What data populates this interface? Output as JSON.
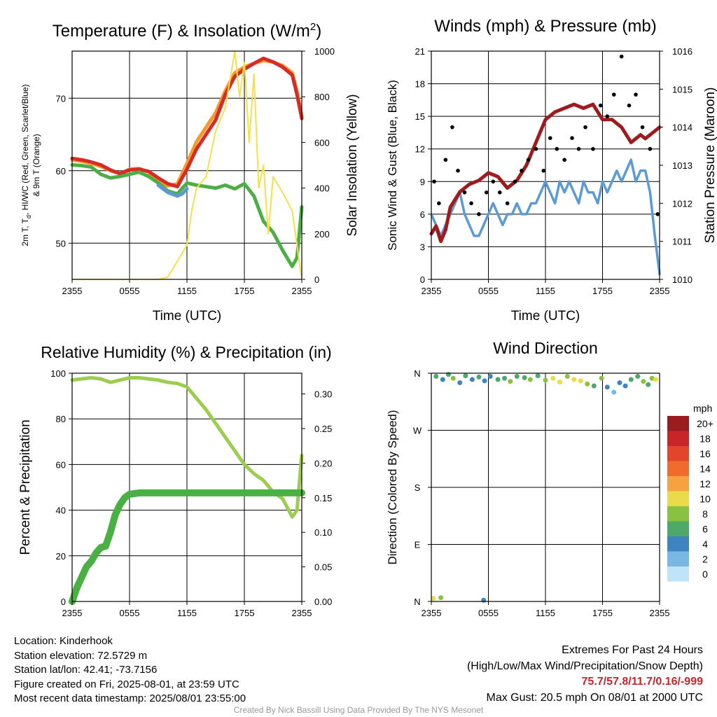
{
  "chart_data": [
    {
      "type": "line",
      "title": "Temperature (F) & Insolation (W/m",
      "title_sup": "2",
      "title_end": ")",
      "xlabel": "Time (UTC)",
      "ylabel_left_line1": "2m T, T",
      "ylabel_left_sub": "d",
      "ylabel_left_line1_end": ", HI/WC (Red, Green, Scarlet/Blue)",
      "ylabel_left_line2": "& 9m T (Orange)",
      "ylabel_right": "Solar Insolation (Yellow)",
      "x_ticks": [
        "2355",
        "0555",
        "1155",
        "1755",
        "2355"
      ],
      "y_left_ticks": [
        50,
        60,
        70
      ],
      "y_left_range": [
        45,
        76.5
      ],
      "y_right_ticks": [
        0,
        200,
        400,
        600,
        800,
        1000
      ],
      "y_right_range": [
        0,
        1000
      ],
      "x_range": [
        0,
        24
      ],
      "series": [
        {
          "color": "#f59a2c",
          "axis": "left",
          "x": [
            0,
            1,
            2,
            3,
            4,
            5,
            6,
            7,
            8,
            9,
            10,
            11,
            12,
            13,
            14,
            15,
            16,
            17,
            18,
            19,
            20,
            21,
            22,
            23,
            23.5,
            24
          ],
          "y": [
            61.5,
            61.3,
            61.0,
            60.6,
            60.0,
            59.6,
            60.2,
            60.3,
            59.8,
            58.5,
            57.9,
            58.2,
            61.0,
            64.0,
            66.0,
            68.0,
            71.0,
            73.5,
            74.3,
            74.8,
            75.2,
            75.0,
            74.5,
            73.5,
            71.0,
            67.5
          ]
        },
        {
          "color": "#d62b26",
          "axis": "left",
          "x": [
            0,
            1,
            2,
            3,
            4,
            5,
            6,
            7,
            8,
            9,
            10,
            11,
            12,
            13,
            14,
            15,
            16,
            17,
            18,
            19,
            20,
            21,
            22,
            23,
            23.5,
            24
          ],
          "y": [
            61.7,
            61.5,
            61.2,
            60.8,
            60.1,
            59.6,
            60.1,
            60.2,
            59.9,
            59.0,
            58.2,
            57.8,
            60.2,
            63.0,
            65.0,
            67.0,
            70.5,
            73.0,
            74.0,
            74.8,
            75.5,
            75.0,
            74.3,
            73.2,
            70.5,
            67.2
          ]
        },
        {
          "color": "#4caf45",
          "axis": "left",
          "x": [
            0,
            1,
            2,
            3,
            4,
            5,
            6,
            7,
            8,
            9,
            10,
            11,
            12,
            13,
            14,
            15,
            16,
            17,
            18,
            19,
            20,
            21,
            22,
            23,
            23.5,
            24
          ],
          "y": [
            60.8,
            60.7,
            60.5,
            59.5,
            59.0,
            59.2,
            59.5,
            59.8,
            59.2,
            58.3,
            57.2,
            56.8,
            58.3,
            58.0,
            57.8,
            57.6,
            58.0,
            57.5,
            58.2,
            56.5,
            53.0,
            51.5,
            49.0,
            46.8,
            48.0,
            55.0
          ]
        },
        {
          "color": "#5b9bd5",
          "axis": "left",
          "x": [
            9,
            10,
            11,
            11.5,
            12
          ],
          "y": [
            58.0,
            57.0,
            56.5,
            56.8,
            57.5
          ]
        },
        {
          "color": "#f5e04a",
          "axis": "right",
          "x": [
            0,
            6,
            8,
            9,
            10,
            11,
            12,
            12.5,
            13,
            14,
            15,
            16,
            17,
            17.5,
            18,
            18.5,
            19,
            19.5,
            20,
            20.5,
            21,
            22,
            23,
            24
          ],
          "y": [
            0,
            0,
            0,
            0,
            10,
            80,
            150,
            300,
            400,
            450,
            650,
            750,
            1000,
            800,
            950,
            600,
            900,
            400,
            500,
            200,
            450,
            380,
            300,
            0
          ]
        }
      ]
    },
    {
      "type": "line",
      "title": "Winds (mph) & Pressure (mb)",
      "xlabel": "Time (UTC)",
      "ylabel_left": "Sonic Wind & Gust (Blue, Black)",
      "ylabel_right": "Station Pressure (Maroon)",
      "x_ticks": [
        "2355",
        "0555",
        "1155",
        "1755",
        "2355"
      ],
      "y_left_ticks": [
        0,
        3,
        6,
        9,
        12,
        15,
        18,
        21
      ],
      "y_left_range": [
        0,
        21
      ],
      "y_right_ticks": [
        1010,
        1011,
        1012,
        1013,
        1014,
        1015,
        1016
      ],
      "y_right_range": [
        1010,
        1016
      ],
      "x_range": [
        0,
        24
      ],
      "series": [
        {
          "color": "#5b9bd5",
          "axis": "left",
          "x": [
            0,
            0.5,
            1,
            1.5,
            2,
            2.5,
            3,
            3.5,
            4,
            4.5,
            5,
            5.5,
            6,
            6.5,
            7,
            7.5,
            8,
            8.5,
            9,
            9.5,
            10,
            10.5,
            11,
            11.5,
            12,
            12.5,
            13,
            13.5,
            14,
            14.5,
            15,
            15.5,
            16,
            16.5,
            17,
            17.5,
            18,
            18.5,
            19,
            19.5,
            20,
            20.5,
            21,
            21.5,
            22,
            22.5,
            23,
            23.5,
            24
          ],
          "y": [
            6,
            5,
            4,
            5,
            6,
            7,
            8,
            6,
            5,
            4,
            4,
            5,
            6,
            7,
            6,
            5,
            6,
            6,
            7,
            6,
            6,
            7,
            7,
            8,
            9,
            8,
            7,
            9,
            8,
            9,
            8,
            7,
            9,
            8,
            8,
            7,
            9,
            8,
            9,
            10,
            9,
            10,
            11,
            9,
            10,
            10,
            8,
            4,
            0.5
          ]
        },
        {
          "color": "#9e1b1e",
          "axis": "right",
          "x": [
            0,
            0.5,
            1,
            1.5,
            2,
            3,
            4,
            5,
            6,
            7,
            8,
            9,
            10,
            11,
            12,
            13,
            14,
            15,
            16,
            17,
            17.5,
            18,
            19,
            20,
            21,
            22,
            22.5,
            23,
            24
          ],
          "y": [
            1011.2,
            1011.4,
            1011.0,
            1011.3,
            1011.9,
            1012.3,
            1012.5,
            1012.6,
            1012.8,
            1012.7,
            1012.4,
            1012.6,
            1013.0,
            1013.6,
            1014.2,
            1014.4,
            1014.5,
            1014.6,
            1014.5,
            1014.6,
            1014.4,
            1014.2,
            1014.2,
            1014.0,
            1013.6,
            1013.8,
            1013.7,
            1013.8,
            1014.0
          ]
        },
        {
          "color": "#000000",
          "axis": "left",
          "kind": "scatter",
          "x": [
            0.3,
            0.8,
            1.5,
            2.2,
            2.8,
            3.5,
            4.2,
            5,
            5.8,
            6.5,
            7.2,
            8,
            8.8,
            9.5,
            10.2,
            11,
            11.8,
            12.5,
            13.2,
            14,
            14.8,
            15.5,
            16.2,
            17,
            17.8,
            18.5,
            19.2,
            20,
            20.8,
            21.5,
            22.2,
            23,
            23.8
          ],
          "y": [
            9,
            7,
            11,
            14,
            10,
            8,
            7,
            6,
            8,
            9,
            8,
            7,
            9,
            10,
            11,
            12,
            10,
            13,
            12,
            11,
            13,
            12,
            14,
            12,
            16,
            15,
            17,
            20.5,
            16,
            17,
            14,
            12,
            6
          ]
        }
      ]
    },
    {
      "type": "line",
      "title": "Relative Humidity (%) & Precipitation (in)",
      "ylabel_left": "Percent & Precipitation",
      "x_ticks": [
        "2355",
        "0555",
        "1155",
        "1755",
        "2355"
      ],
      "y_left_ticks": [
        0,
        20,
        40,
        60,
        80,
        100
      ],
      "y_left_range": [
        0,
        100
      ],
      "y_right_ticks": [
        "0.00",
        "0.05",
        "0.10",
        "0.15",
        "0.20",
        "0.25",
        "0.30"
      ],
      "y_right_range": [
        0,
        0.33
      ],
      "x_range": [
        0,
        24
      ],
      "series": [
        {
          "color": "#9ccc50",
          "axis": "left",
          "x": [
            0,
            1,
            2,
            3,
            4,
            5,
            6,
            7,
            8,
            9,
            10,
            11,
            12,
            13,
            14,
            15,
            16,
            17,
            18,
            19,
            20,
            21,
            22,
            22.5,
            23,
            23.5,
            24
          ],
          "y": [
            97,
            97.5,
            98,
            97.5,
            96,
            97,
            98,
            98,
            97.5,
            97,
            96,
            95.5,
            94,
            89,
            84,
            78,
            72,
            66,
            60,
            56,
            53,
            48,
            45,
            41,
            37,
            40,
            64
          ]
        },
        {
          "color": "#4bb043",
          "axis": "right",
          "x": [
            0,
            0.5,
            1,
            1.5,
            2,
            2.5,
            3,
            3.5,
            4,
            4.5,
            5,
            5.5,
            6,
            7,
            8,
            10,
            12,
            14,
            16,
            18,
            20,
            22,
            24
          ],
          "y": [
            0,
            0.02,
            0.035,
            0.05,
            0.058,
            0.07,
            0.078,
            0.08,
            0.1,
            0.125,
            0.14,
            0.15,
            0.155,
            0.157,
            0.157,
            0.157,
            0.157,
            0.157,
            0.157,
            0.157,
            0.157,
            0.157,
            0.157
          ]
        }
      ]
    },
    {
      "type": "scatter",
      "title": "Wind Direction",
      "ylabel_left": "Direction (Colored By Speed)",
      "x_ticks": [
        "2355",
        "0555",
        "1155",
        "1755",
        "2355"
      ],
      "y_ticks": [
        "N",
        "E",
        "S",
        "W",
        "N"
      ],
      "y_range": [
        0,
        360
      ],
      "x_range": [
        0,
        24
      ],
      "colorbar_title": "mph",
      "colorbar_labels": [
        "20+",
        "18",
        "16",
        "14",
        "12",
        "10",
        "8",
        "6",
        "4",
        "2",
        "0"
      ],
      "colorbar_colors": [
        "#9b1c1f",
        "#c8252a",
        "#e2452c",
        "#f06b2d",
        "#f4a340",
        "#eadb4b",
        "#88c240",
        "#4ea86a",
        "#3e84c3",
        "#78b8e2",
        "#bfe4f8"
      ],
      "points_speed": [
        5,
        4,
        6,
        7,
        4,
        5,
        4,
        6,
        3,
        4,
        5,
        6,
        7,
        5,
        6,
        8,
        6,
        7,
        9,
        10,
        8,
        9,
        10,
        7,
        6,
        8,
        3,
        2,
        4,
        3,
        6,
        5,
        7,
        6,
        8,
        9,
        10,
        7,
        3
      ],
      "points_x": [
        0.5,
        1.2,
        1.8,
        2.3,
        3,
        3.6,
        4.3,
        5,
        5.6,
        6.2,
        7,
        7.7,
        8.3,
        9,
        9.8,
        10.4,
        11.2,
        12,
        12.8,
        13.5,
        14.3,
        15,
        15.7,
        16.4,
        17.1,
        17.9,
        18.5,
        19.2,
        19.8,
        20.4,
        21,
        21.7,
        22.3,
        22.8,
        23.2,
        23.6,
        0.2,
        1,
        5.5
      ],
      "points_dir": [
        355,
        350,
        358,
        352,
        345,
        356,
        350,
        354,
        348,
        355,
        350,
        352,
        347,
        355,
        353,
        350,
        356,
        349,
        352,
        346,
        355,
        350,
        348,
        343,
        340,
        352,
        338,
        330,
        345,
        340,
        350,
        355,
        347,
        342,
        352,
        350,
        5,
        6,
        2
      ]
    }
  ],
  "info": {
    "location": "Location: Kinderhook",
    "elevation": "Station elevation: 72.5729 m",
    "latlon": "Station lat/lon: 42.41; -73.7156",
    "created": "Figure created on Fri, 2025-08-01, at 23:59 UTC",
    "recent": "Most recent data timestamp: 2025/08/01 23:55:00"
  },
  "extremes": {
    "title": "Extremes For Past 24 Hours",
    "subtitle": "(High/Low/Max Wind/Precipitation/Snow Depth)",
    "values": "75.7/57.8/11.7/0.16/-999",
    "gust": "Max Gust: 20.5 mph On 08/01 at 2000 UTC",
    "value_color": "#c8252a"
  },
  "credit": "Created By Nick Bassill Using Data Provided By The NYS Mesonet"
}
